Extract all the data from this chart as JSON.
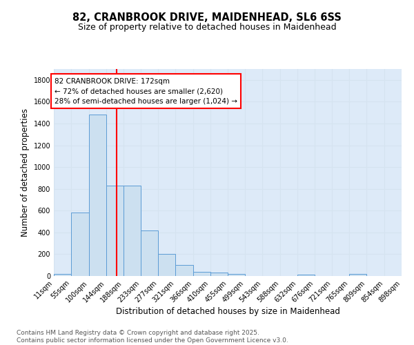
{
  "title_line1": "82, CRANBROOK DRIVE, MAIDENHEAD, SL6 6SS",
  "title_line2": "Size of property relative to detached houses in Maidenhead",
  "xlabel": "Distribution of detached houses by size in Maidenhead",
  "ylabel": "Number of detached properties",
  "bar_edges": [
    11,
    55,
    100,
    144,
    188,
    233,
    277,
    321,
    366,
    410,
    455,
    499,
    543,
    588,
    632,
    676,
    721,
    765,
    809,
    854,
    898
  ],
  "bar_heights": [
    20,
    580,
    1480,
    830,
    830,
    420,
    200,
    100,
    35,
    30,
    20,
    0,
    0,
    0,
    15,
    0,
    0,
    20,
    0,
    0
  ],
  "bar_color": "#cce0f0",
  "bar_edge_color": "#5b9bd5",
  "grid_color": "#d5e3f0",
  "background_color": "#ddeaf8",
  "vline_x": 172,
  "vline_color": "red",
  "annotation_text": "82 CRANBROOK DRIVE: 172sqm\n← 72% of detached houses are smaller (2,620)\n28% of semi-detached houses are larger (1,024) →",
  "annotation_box_color": "white",
  "annotation_box_edge": "red",
  "ylim": [
    0,
    1900
  ],
  "yticks": [
    0,
    200,
    400,
    600,
    800,
    1000,
    1200,
    1400,
    1600,
    1800
  ],
  "tick_labels": [
    "11sqm",
    "55sqm",
    "100sqm",
    "144sqm",
    "188sqm",
    "233sqm",
    "277sqm",
    "321sqm",
    "366sqm",
    "410sqm",
    "455sqm",
    "499sqm",
    "543sqm",
    "588sqm",
    "632sqm",
    "676sqm",
    "721sqm",
    "765sqm",
    "809sqm",
    "854sqm",
    "898sqm"
  ],
  "footer_text": "Contains HM Land Registry data © Crown copyright and database right 2025.\nContains public sector information licensed under the Open Government Licence v3.0.",
  "title_fontsize": 10.5,
  "title2_fontsize": 9,
  "axis_label_fontsize": 8.5,
  "tick_fontsize": 7,
  "footer_fontsize": 6.5,
  "annot_fontsize": 7.5
}
